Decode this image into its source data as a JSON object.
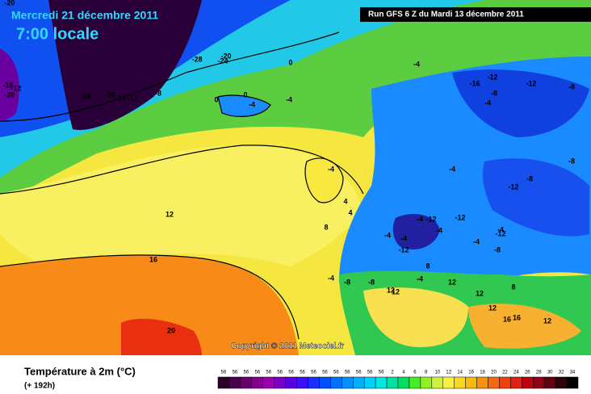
{
  "header": {
    "title": "Mercredi 21 décembre 2011",
    "time": "7:00 locale",
    "run": "Run GFS 6 Z du Mardi 13 décembre 2011"
  },
  "map": {
    "copyright": "Copyright © 2011 Meteociel.fr",
    "contour_labels": [
      "-20",
      "-28",
      "-24",
      "-20",
      "-16",
      "-12",
      "-20",
      "-28",
      "-24",
      "-16",
      "-12",
      "-8",
      "0",
      "-4",
      "0",
      "-4",
      "-4",
      "0",
      "-4",
      "-16",
      "-12",
      "-12",
      "-8",
      "-4",
      "-8",
      "-4",
      "-8",
      "-12",
      "-8",
      "-12",
      "-4",
      "-12",
      "-4",
      "-12",
      "-4",
      "-4",
      "-4",
      "-8",
      "-8",
      "-12",
      "-4",
      "-4",
      "-8",
      "12",
      "16",
      "20",
      "12",
      "8",
      "4",
      "4",
      "-4",
      "8",
      "12",
      "12",
      "12",
      "8",
      "12",
      "16",
      "16",
      "12"
    ]
  },
  "legend": {
    "title": "Température à 2m (°C)",
    "subtitle": "(+ 192h)",
    "labels": [
      "56",
      "56",
      "56",
      "56",
      "56",
      "56",
      "56",
      "56",
      "56",
      "56",
      "56",
      "56",
      "56",
      "56",
      "56",
      "2",
      "4",
      "6",
      "8",
      "10",
      "12",
      "14",
      "16",
      "18",
      "20",
      "22",
      "24",
      "26",
      "28",
      "30",
      "32",
      "34"
    ],
    "colors": [
      "#2a002a",
      "#48004a",
      "#66006a",
      "#84008c",
      "#9a00b0",
      "#7a00c8",
      "#5a00e0",
      "#3a10f0",
      "#1830ff",
      "#0050ff",
      "#0070ff",
      "#0090ff",
      "#00b0ff",
      "#00d0ff",
      "#00e8e0",
      "#00e0a0",
      "#00e060",
      "#40f020",
      "#90f020",
      "#d0f040",
      "#f8f040",
      "#f8d820",
      "#f8b810",
      "#f89010",
      "#f86810",
      "#f04010",
      "#e02010",
      "#c00010",
      "#900010",
      "#600010",
      "#300008",
      "#000000"
    ]
  }
}
